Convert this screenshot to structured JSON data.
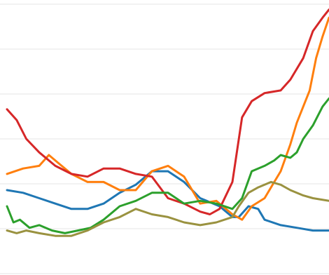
{
  "chart_data": {
    "type": "line",
    "title": "",
    "xlabel": "",
    "ylabel": "",
    "xlim": [
      0,
      100
    ],
    "ylim": [
      0,
      100
    ],
    "grid": true,
    "gridlines_y": [
      0,
      16.67,
      33.33,
      50,
      66.67,
      83.33,
      100
    ],
    "legend": "none",
    "series": [
      {
        "color": "#1f77b4",
        "x": [
          0,
          5,
          10,
          15,
          20,
          25,
          30,
          35,
          40,
          45,
          50,
          55,
          60,
          62,
          66,
          70,
          72,
          75,
          78,
          80,
          85,
          90,
          95,
          100
        ],
        "y": [
          31,
          30,
          28,
          26,
          24,
          24,
          26,
          30,
          33,
          38,
          38,
          34,
          28,
          27,
          25,
          21,
          21,
          25,
          24,
          20,
          18,
          17,
          16,
          16
        ]
      },
      {
        "color": "#ff7f0e",
        "x": [
          0,
          5,
          10,
          13,
          16,
          20,
          25,
          30,
          35,
          40,
          45,
          50,
          55,
          60,
          65,
          70,
          73,
          76,
          80,
          83,
          85,
          88,
          90,
          92,
          94,
          96,
          98,
          100
        ],
        "y": [
          37,
          39,
          40,
          44,
          41,
          37,
          34,
          34,
          31,
          31,
          38,
          40,
          36,
          26,
          27,
          22,
          20,
          25,
          28,
          34,
          38,
          48,
          56,
          62,
          68,
          80,
          88,
          95
        ]
      },
      {
        "color": "#d62728",
        "x": [
          0,
          3,
          6,
          10,
          15,
          20,
          25,
          30,
          35,
          40,
          45,
          50,
          55,
          60,
          63,
          66,
          70,
          73,
          76,
          80,
          85,
          88,
          92,
          95,
          98,
          100
        ],
        "y": [
          61,
          57,
          50,
          45,
          40,
          37,
          36,
          39,
          39,
          37,
          36,
          28,
          26,
          23,
          22,
          24,
          34,
          58,
          64,
          67,
          68,
          72,
          80,
          90,
          95,
          98
        ]
      },
      {
        "color": "#2ca02c",
        "x": [
          0,
          2,
          4,
          7,
          10,
          14,
          18,
          22,
          26,
          30,
          35,
          40,
          45,
          50,
          55,
          60,
          65,
          70,
          73,
          76,
          80,
          83,
          85,
          88,
          90,
          92,
          95,
          98,
          100
        ],
        "y": [
          25,
          19,
          20,
          17,
          18,
          16,
          15,
          16,
          17,
          20,
          25,
          27,
          30,
          30,
          26,
          27,
          26,
          24,
          28,
          38,
          40,
          42,
          44,
          43,
          45,
          50,
          55,
          62,
          65
        ]
      },
      {
        "color": "#9a9240",
        "x": [
          0,
          3,
          6,
          10,
          15,
          20,
          25,
          30,
          35,
          40,
          45,
          50,
          55,
          60,
          65,
          70,
          72,
          75,
          78,
          80,
          82,
          85,
          88,
          92,
          95,
          100
        ],
        "y": [
          16,
          15,
          16,
          15,
          14,
          14,
          16,
          19,
          21,
          24,
          22,
          21,
          19,
          18,
          19,
          21,
          25,
          30,
          32,
          33,
          34,
          33,
          31,
          29,
          28,
          27
        ]
      }
    ]
  }
}
